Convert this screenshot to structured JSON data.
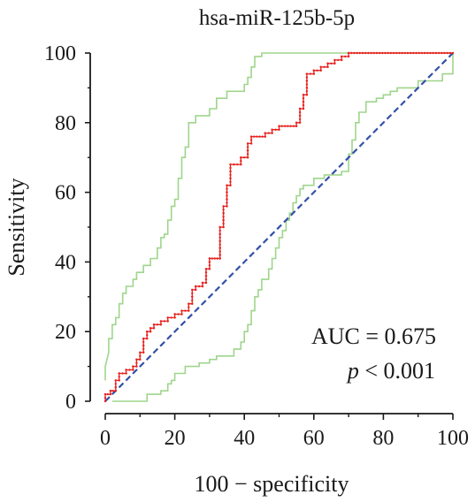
{
  "chart_data": {
    "type": "line",
    "title": "hsa-miR-125b-5p",
    "xlabel": "100 − specificity",
    "ylabel": "Sensitivity",
    "xlim": [
      0,
      100
    ],
    "ylim": [
      0,
      100
    ],
    "xticks": [
      "0",
      "20",
      "40",
      "60",
      "80",
      "100"
    ],
    "yticks": [
      "0",
      "20",
      "40",
      "60",
      "80",
      "100"
    ],
    "annotations": {
      "auc": "AUC = 0.675",
      "p_italic": "p",
      "p_rest": " < 0.001"
    },
    "colors": {
      "roc": "#e8221f",
      "ci": "#9fd58c",
      "diagonal": "#3350a8",
      "axis": "#1a1a1a"
    },
    "series": [
      {
        "role": "roc",
        "points": [
          [
            0,
            0
          ],
          [
            0,
            2
          ],
          [
            1.5,
            2
          ],
          [
            1.5,
            3
          ],
          [
            3,
            3
          ],
          [
            3,
            4
          ],
          [
            3,
            6
          ],
          [
            4,
            6
          ],
          [
            4,
            8
          ],
          [
            6,
            8
          ],
          [
            6,
            9
          ],
          [
            8,
            9
          ],
          [
            8,
            10
          ],
          [
            9,
            10
          ],
          [
            9,
            12
          ],
          [
            10,
            12
          ],
          [
            10,
            14
          ],
          [
            11,
            14
          ],
          [
            11,
            16
          ],
          [
            11,
            18
          ],
          [
            12,
            18
          ],
          [
            12,
            20
          ],
          [
            13,
            20
          ],
          [
            13,
            21
          ],
          [
            14,
            21
          ],
          [
            14,
            22
          ],
          [
            16,
            22
          ],
          [
            16,
            23
          ],
          [
            18,
            23
          ],
          [
            18,
            24
          ],
          [
            20,
            24
          ],
          [
            20,
            25
          ],
          [
            22,
            25
          ],
          [
            22,
            26
          ],
          [
            24,
            26
          ],
          [
            24,
            28
          ],
          [
            25,
            28
          ],
          [
            25,
            30
          ],
          [
            25,
            32
          ],
          [
            26,
            32
          ],
          [
            26,
            33
          ],
          [
            28,
            33
          ],
          [
            28,
            34
          ],
          [
            29,
            34
          ],
          [
            29,
            36
          ],
          [
            29,
            38
          ],
          [
            30,
            38
          ],
          [
            30,
            40
          ],
          [
            30,
            41
          ],
          [
            33,
            41
          ],
          [
            33,
            42
          ],
          [
            33,
            44
          ],
          [
            33,
            46
          ],
          [
            33,
            48
          ],
          [
            33,
            50
          ],
          [
            34,
            50
          ],
          [
            34,
            52
          ],
          [
            34,
            54
          ],
          [
            34,
            56
          ],
          [
            35,
            56
          ],
          [
            35,
            58
          ],
          [
            35,
            60
          ],
          [
            35,
            62
          ],
          [
            36,
            62
          ],
          [
            36,
            64
          ],
          [
            36,
            66
          ],
          [
            36,
            68
          ],
          [
            37,
            68
          ],
          [
            39,
            68
          ],
          [
            39,
            70
          ],
          [
            41,
            70
          ],
          [
            41,
            72
          ],
          [
            41,
            74
          ],
          [
            42,
            74
          ],
          [
            42,
            76
          ],
          [
            46,
            76
          ],
          [
            46,
            77
          ],
          [
            48,
            77
          ],
          [
            48,
            78
          ],
          [
            50,
            78
          ],
          [
            50,
            79
          ],
          [
            55,
            79
          ],
          [
            55,
            80
          ],
          [
            56,
            80
          ],
          [
            56,
            82
          ],
          [
            56,
            84
          ],
          [
            57,
            84
          ],
          [
            57,
            86
          ],
          [
            57,
            88
          ],
          [
            58,
            88
          ],
          [
            58,
            90
          ],
          [
            58,
            92
          ],
          [
            58,
            94
          ],
          [
            60,
            94
          ],
          [
            60,
            95
          ],
          [
            62,
            95
          ],
          [
            62,
            96
          ],
          [
            64,
            96
          ],
          [
            64,
            97
          ],
          [
            66,
            97
          ],
          [
            66,
            98
          ],
          [
            68,
            98
          ],
          [
            68,
            99
          ],
          [
            70,
            99
          ],
          [
            70,
            100
          ],
          [
            100,
            100
          ]
        ]
      },
      {
        "role": "ci-upper",
        "points": [
          [
            0,
            6
          ],
          [
            0,
            10
          ],
          [
            1,
            14
          ],
          [
            1,
            18
          ],
          [
            2,
            18
          ],
          [
            2,
            22
          ],
          [
            3,
            22
          ],
          [
            3,
            24
          ],
          [
            4,
            24
          ],
          [
            4,
            28
          ],
          [
            5,
            28
          ],
          [
            5,
            31
          ],
          [
            6,
            31
          ],
          [
            6,
            33
          ],
          [
            8,
            33
          ],
          [
            8,
            35
          ],
          [
            9,
            35
          ],
          [
            9,
            37
          ],
          [
            11,
            37
          ],
          [
            11,
            39
          ],
          [
            13,
            39
          ],
          [
            13,
            41
          ],
          [
            15,
            41
          ],
          [
            15,
            44
          ],
          [
            16,
            44
          ],
          [
            16,
            47
          ],
          [
            17,
            47
          ],
          [
            17,
            48
          ],
          [
            18,
            48
          ],
          [
            18,
            52
          ],
          [
            19,
            52
          ],
          [
            19,
            56
          ],
          [
            20,
            56
          ],
          [
            20,
            58
          ],
          [
            21,
            58
          ],
          [
            21,
            64
          ],
          [
            22,
            64
          ],
          [
            22,
            70
          ],
          [
            23,
            70
          ],
          [
            23,
            73
          ],
          [
            24,
            73
          ],
          [
            24,
            80
          ],
          [
            26,
            80
          ],
          [
            26,
            82
          ],
          [
            30,
            82
          ],
          [
            30,
            84
          ],
          [
            32,
            84
          ],
          [
            32,
            87
          ],
          [
            35,
            87
          ],
          [
            35,
            89
          ],
          [
            40,
            89
          ],
          [
            40,
            91
          ],
          [
            41,
            91
          ],
          [
            41,
            93
          ],
          [
            42,
            93
          ],
          [
            42,
            96
          ],
          [
            43,
            96
          ],
          [
            43,
            99
          ],
          [
            45,
            99
          ],
          [
            45,
            100
          ],
          [
            100,
            100
          ]
        ]
      },
      {
        "role": "ci-lower",
        "points": [
          [
            2,
            0
          ],
          [
            12,
            0
          ],
          [
            12,
            2
          ],
          [
            16,
            2
          ],
          [
            16,
            3
          ],
          [
            18,
            3
          ],
          [
            18,
            5
          ],
          [
            19,
            5
          ],
          [
            19,
            6
          ],
          [
            20,
            6
          ],
          [
            20,
            8
          ],
          [
            23,
            8
          ],
          [
            23,
            10
          ],
          [
            27,
            10
          ],
          [
            27,
            11
          ],
          [
            30,
            11
          ],
          [
            30,
            12
          ],
          [
            32,
            12
          ],
          [
            32,
            13
          ],
          [
            37,
            13
          ],
          [
            37,
            15
          ],
          [
            39,
            15
          ],
          [
            39,
            17
          ],
          [
            40,
            17
          ],
          [
            40,
            20
          ],
          [
            41,
            20
          ],
          [
            41,
            22
          ],
          [
            42,
            22
          ],
          [
            42,
            26
          ],
          [
            43,
            26
          ],
          [
            43,
            30
          ],
          [
            44,
            30
          ],
          [
            44,
            32
          ],
          [
            45,
            32
          ],
          [
            45,
            35
          ],
          [
            47,
            35
          ],
          [
            47,
            38
          ],
          [
            48,
            38
          ],
          [
            48,
            41
          ],
          [
            49,
            41
          ],
          [
            49,
            44
          ],
          [
            50,
            44
          ],
          [
            50,
            47
          ],
          [
            51,
            47
          ],
          [
            51,
            49
          ],
          [
            52,
            49
          ],
          [
            52,
            52
          ],
          [
            53,
            52
          ],
          [
            53,
            54
          ],
          [
            54,
            54
          ],
          [
            54,
            57
          ],
          [
            55,
            57
          ],
          [
            55,
            59
          ],
          [
            56,
            59
          ],
          [
            56,
            61
          ],
          [
            57,
            61
          ],
          [
            57,
            62
          ],
          [
            60,
            62
          ],
          [
            60,
            64
          ],
          [
            63,
            64
          ],
          [
            63,
            65
          ],
          [
            68,
            65
          ],
          [
            68,
            66
          ],
          [
            70,
            66
          ],
          [
            70,
            68
          ],
          [
            70,
            71
          ],
          [
            71,
            71
          ],
          [
            71,
            75
          ],
          [
            72,
            75
          ],
          [
            72,
            80
          ],
          [
            73,
            80
          ],
          [
            73,
            83
          ],
          [
            75,
            83
          ],
          [
            75,
            86
          ],
          [
            78,
            86
          ],
          [
            78,
            87
          ],
          [
            80,
            87
          ],
          [
            80,
            88
          ],
          [
            82,
            88
          ],
          [
            82,
            89
          ],
          [
            84,
            89
          ],
          [
            84,
            90
          ],
          [
            90,
            90
          ],
          [
            90,
            92
          ],
          [
            97,
            92
          ],
          [
            97,
            94
          ],
          [
            100,
            94
          ],
          [
            100,
            100
          ]
        ]
      },
      {
        "role": "diagonal",
        "points": [
          [
            0,
            0
          ],
          [
            100,
            100
          ]
        ]
      }
    ]
  }
}
